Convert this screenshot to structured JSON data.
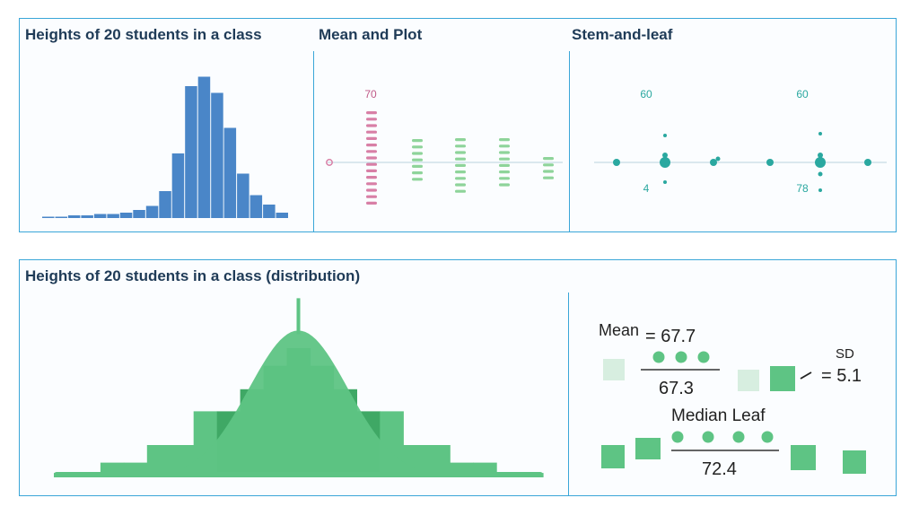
{
  "top": {
    "titles": [
      "Heights of 20 students in a class",
      "Mean and Plot",
      "Stem-and-leaf"
    ],
    "colors": {
      "header": "#3aabdd",
      "histogram": "#4a86c8",
      "pink": "#d87fa6",
      "green": "#8ed49a",
      "teal": "#2aa8a0"
    }
  },
  "bottom": {
    "title": "Heights of 20 students in a class (distribution)",
    "colors": {
      "fill": "#5ec484",
      "dark": "#3fa865"
    }
  },
  "middle": {
    "label_top": "70"
  },
  "right": {
    "label_top_a": "60",
    "label_top_b": "60",
    "label_bottom_a": "4",
    "label_bottom_b": "78"
  },
  "stats": {
    "mean_label": "Mean",
    "mean_value": "= 67.7",
    "mean_fraction_value": "67.3",
    "sd_label": "SD",
    "sd_value": "= 5.1",
    "median_label": "Median Leaf",
    "median_value": "72.4"
  },
  "chart_data": [
    {
      "type": "bar",
      "title": "Heights of 20 students in a class",
      "values": [
        1,
        1,
        2,
        2,
        3,
        3,
        4,
        6,
        9,
        20,
        48,
        98,
        105,
        93,
        67,
        33,
        17,
        10,
        4
      ],
      "ylim": [
        0,
        110
      ],
      "grid": false
    },
    {
      "type": "area",
      "title": "Heights of 20 students in a class (distribution)",
      "steps": [
        3,
        3,
        10,
        10,
        22,
        22,
        45,
        45,
        60,
        76,
        88,
        76,
        60,
        45,
        45,
        22,
        22,
        10,
        10,
        3,
        3
      ],
      "curve_peak": 100,
      "ylim": [
        0,
        110
      ]
    }
  ]
}
